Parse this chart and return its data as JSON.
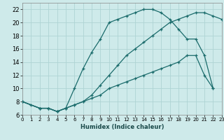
{
  "xlabel": "Humidex (Indice chaleur)",
  "ylabel": "",
  "bg_color": "#ceeaea",
  "grid_color": "#aed4d4",
  "line_color": "#1a6b6b",
  "xlim": [
    0,
    23
  ],
  "ylim": [
    6,
    23
  ],
  "xticks": [
    0,
    1,
    2,
    3,
    4,
    5,
    6,
    7,
    8,
    9,
    10,
    11,
    12,
    13,
    14,
    15,
    16,
    17,
    18,
    19,
    20,
    21,
    22,
    23
  ],
  "yticks": [
    6,
    8,
    10,
    12,
    14,
    16,
    18,
    20,
    22
  ],
  "line1_x": [
    0,
    1,
    2,
    3,
    4,
    5,
    6,
    7,
    8,
    9,
    10,
    11,
    12,
    13,
    14,
    15,
    16,
    17,
    18,
    19,
    20,
    21,
    22,
    23
  ],
  "line1_y": [
    8,
    7.5,
    7,
    7,
    6.5,
    7,
    7.5,
    8,
    9,
    10.5,
    12,
    13.5,
    15,
    16,
    17,
    18,
    19,
    20,
    20.5,
    21,
    21.5,
    21.5,
    21,
    20.5
  ],
  "line2_x": [
    0,
    2,
    3,
    4,
    5,
    6,
    7,
    8,
    9,
    10,
    11,
    12,
    13,
    14,
    15,
    16,
    17,
    18,
    19,
    20,
    21,
    22
  ],
  "line2_y": [
    8,
    7,
    7,
    6.5,
    7,
    10,
    13,
    15.5,
    17.5,
    20,
    20.5,
    21,
    21.5,
    22,
    22,
    21.5,
    20.5,
    19,
    17.5,
    17.5,
    15,
    10
  ],
  "line3_x": [
    0,
    2,
    3,
    4,
    5,
    6,
    7,
    8,
    9,
    10,
    11,
    12,
    13,
    14,
    15,
    16,
    17,
    18,
    19,
    20,
    21,
    22
  ],
  "line3_y": [
    8,
    7,
    7,
    6.5,
    7,
    7.5,
    8,
    8.5,
    9,
    10,
    10.5,
    11,
    11.5,
    12,
    12.5,
    13,
    13.5,
    14,
    15,
    15,
    12,
    10
  ]
}
